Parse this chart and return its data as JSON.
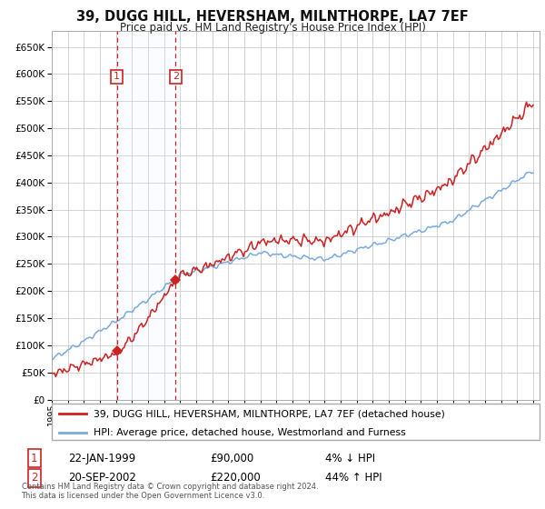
{
  "title": "39, DUGG HILL, HEVERSHAM, MILNTHORPE, LA7 7EF",
  "subtitle": "Price paid vs. HM Land Registry's House Price Index (HPI)",
  "legend_line1": "39, DUGG HILL, HEVERSHAM, MILNTHORPE, LA7 7EF (detached house)",
  "legend_line2": "HPI: Average price, detached house, Westmorland and Furness",
  "transaction1_date": "22-JAN-1999",
  "transaction1_price": "£90,000",
  "transaction1_hpi": "4% ↓ HPI",
  "transaction2_date": "20-SEP-2002",
  "transaction2_price": "£220,000",
  "transaction2_hpi": "44% ↑ HPI",
  "footer": "Contains HM Land Registry data © Crown copyright and database right 2024.\nThis data is licensed under the Open Government Licence v3.0.",
  "hpi_color": "#7aaadd",
  "property_color": "#cc2222",
  "transaction_color": "#cc2222",
  "background_color": "#ffffff",
  "grid_color": "#cccccc",
  "shade_color": "#ddeeff",
  "ylim_min": 0,
  "ylim_max": 680000,
  "price_t1": 90000,
  "price_t2": 220000,
  "t1_year": 1999.055,
  "t2_year": 2002.716
}
